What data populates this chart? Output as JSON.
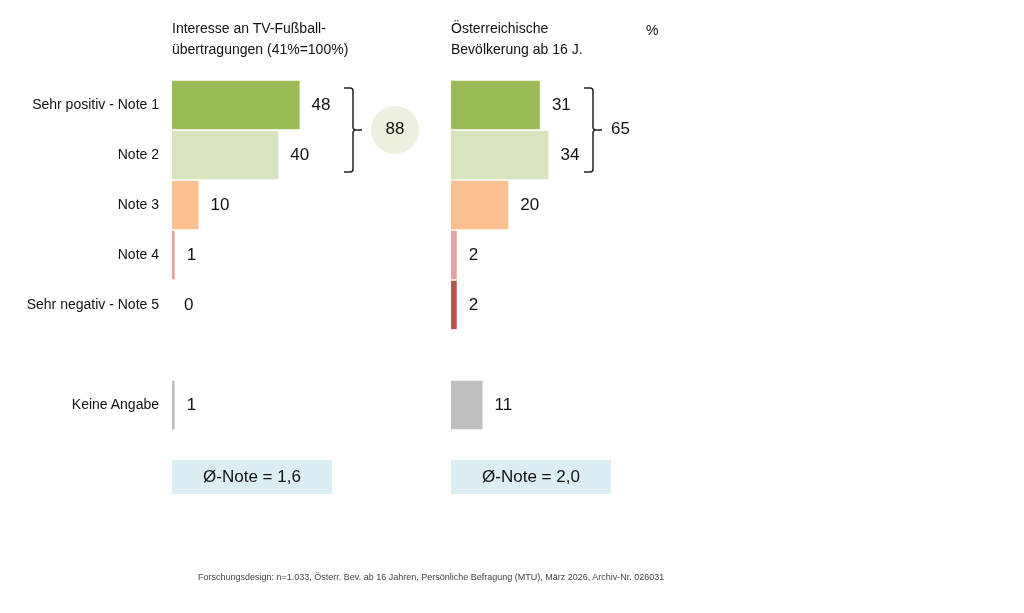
{
  "chart_data": [
    {
      "type": "bar",
      "orientation": "horizontal",
      "title": "Interesse an TV-Fußball-übertragungen (41%=100%)",
      "categories": [
        "Sehr positiv - Note 1",
        "Note 2",
        "Note 3",
        "Note 4",
        "Sehr negativ - Note 5",
        null,
        "Keine Angabe"
      ],
      "values": [
        48,
        40,
        10,
        1,
        0,
        null,
        1
      ],
      "colors": [
        "#9bbb59",
        "#d7e4bd",
        "#fac090",
        "#e6a0a0",
        "#c0504d",
        "#bfbfbf",
        "#bfbfbf"
      ],
      "data_labels": true,
      "tick_labels": "y",
      "annotations": [
        "88",
        "Ø-Note = 1,6",
        "Forschungsdesign: n=1.033, Österr. Bev. ab 16 Jahren, Persönliche Befragung (MTU), März 2026, Archiv-Nr. 026031"
      ]
    },
    {
      "type": "bar",
      "orientation": "horizontal",
      "title": "Österreichische Bevölkerung ab 16 J.",
      "categories": [
        null,
        null,
        null,
        null,
        null,
        null,
        null
      ],
      "values": [
        31,
        34,
        20,
        2,
        2,
        null,
        11
      ],
      "colors": [
        "#9bbb59",
        "#d7e4bd",
        "#fac090",
        "#e6a0a0",
        "#c0504d",
        "#bfbfbf",
        "#bfbfbf"
      ],
      "data_labels": true,
      "tick_labels": "y",
      "annotations": [
        "%",
        "65",
        "Ø-Note = 2,0"
      ]
    }
  ]
}
